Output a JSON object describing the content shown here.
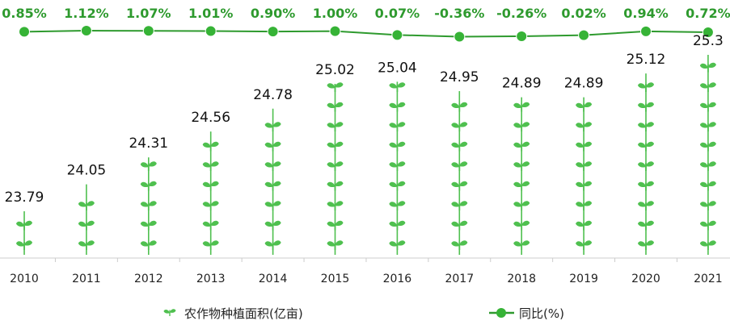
{
  "chart_data": {
    "type": "pictograph-bar-with-line",
    "categories": [
      "2010",
      "2011",
      "2012",
      "2013",
      "2014",
      "2015",
      "2016",
      "2017",
      "2018",
      "2019",
      "2020",
      "2021"
    ],
    "series": [
      {
        "name": "农作物种植面积(亿亩)",
        "kind": "pictograph-bar",
        "values": [
          23.79,
          24.05,
          24.31,
          24.56,
          24.78,
          25.02,
          25.04,
          24.95,
          24.89,
          24.89,
          25.12,
          25.3
        ],
        "labels": [
          "23.79",
          "24.05",
          "24.31",
          "24.56",
          "24.78",
          "25.02",
          "25.04",
          "24.95",
          "24.89",
          "24.89",
          "25.12",
          "25.3"
        ]
      },
      {
        "name": "同比(%)",
        "kind": "line",
        "values": [
          0.85,
          1.12,
          1.07,
          1.01,
          0.9,
          1.0,
          0.07,
          -0.36,
          -0.26,
          0.02,
          0.94,
          0.72
        ],
        "labels": [
          "0.85%",
          "1.12%",
          "1.07%",
          "1.01%",
          "0.90%",
          "1.00%",
          "0.07%",
          "-0.36%",
          "-0.26%",
          "0.02%",
          "0.94%",
          "0.72%"
        ]
      }
    ],
    "bar_axis_range": [
      23.5,
      25.3
    ],
    "line_axis_range": [
      -0.6,
      1.25
    ],
    "legend_position": "bottom",
    "grid": false,
    "colors": {
      "icon": "#4fc04f",
      "line": "#2e9a2e",
      "marker": "#36b336",
      "labels": "#2e9a2e"
    }
  }
}
